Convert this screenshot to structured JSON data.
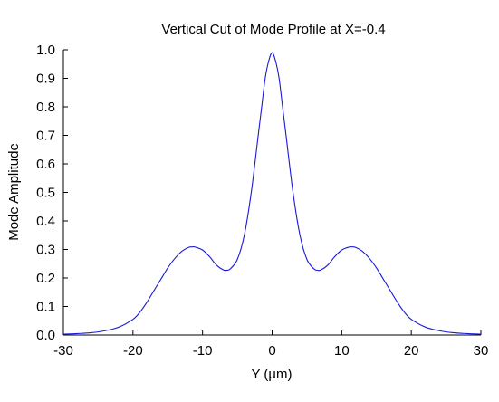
{
  "chart_data": {
    "type": "line",
    "title": "Vertical Cut of Mode Profile at X=-0.4",
    "xlabel": "Y (µm)",
    "ylabel": "Mode Amplitude",
    "xlim": [
      -30,
      30
    ],
    "ylim": [
      0,
      1
    ],
    "grid": false,
    "x_ticks": [
      -30,
      -20,
      -10,
      0,
      10,
      20,
      30
    ],
    "y_ticks": [
      0.0,
      0.1,
      0.2,
      0.3,
      0.4,
      0.5,
      0.6,
      0.7,
      0.8,
      0.9,
      1.0
    ],
    "x_tick_labels": [
      "-30",
      "-20",
      "-10",
      "0",
      "10",
      "20",
      "30"
    ],
    "y_tick_labels": [
      "0.0",
      "0.1",
      "0.2",
      "0.3",
      "0.4",
      "0.5",
      "0.6",
      "0.7",
      "0.8",
      "0.9",
      "1.0"
    ],
    "series": [
      {
        "color": "#1a1ad8",
        "x": [
          -30,
          -28,
          -26,
          -24,
          -22,
          -20,
          -19,
          -18,
          -17,
          -16,
          -15,
          -14,
          -13,
          -12,
          -11.5,
          -11,
          -10,
          -9,
          -8,
          -7,
          -6.5,
          -6,
          -5,
          -4,
          -3,
          -2,
          -1.5,
          -1,
          -0.5,
          0,
          0.5,
          1,
          1.5,
          2,
          3,
          4,
          5,
          6,
          6.5,
          7,
          8,
          9,
          10,
          11,
          11.5,
          12,
          13,
          14,
          15,
          16,
          17,
          18,
          19,
          20,
          22,
          24,
          26,
          28,
          30
        ],
        "y": [
          0.003,
          0.005,
          0.008,
          0.015,
          0.028,
          0.055,
          0.08,
          0.115,
          0.155,
          0.195,
          0.235,
          0.268,
          0.293,
          0.307,
          0.309,
          0.308,
          0.298,
          0.275,
          0.245,
          0.228,
          0.227,
          0.232,
          0.265,
          0.35,
          0.5,
          0.7,
          0.8,
          0.9,
          0.96,
          0.99,
          0.96,
          0.9,
          0.8,
          0.7,
          0.5,
          0.35,
          0.265,
          0.232,
          0.227,
          0.228,
          0.245,
          0.275,
          0.298,
          0.308,
          0.309,
          0.307,
          0.293,
          0.268,
          0.235,
          0.195,
          0.155,
          0.115,
          0.08,
          0.055,
          0.028,
          0.015,
          0.008,
          0.005,
          0.003
        ]
      }
    ]
  }
}
